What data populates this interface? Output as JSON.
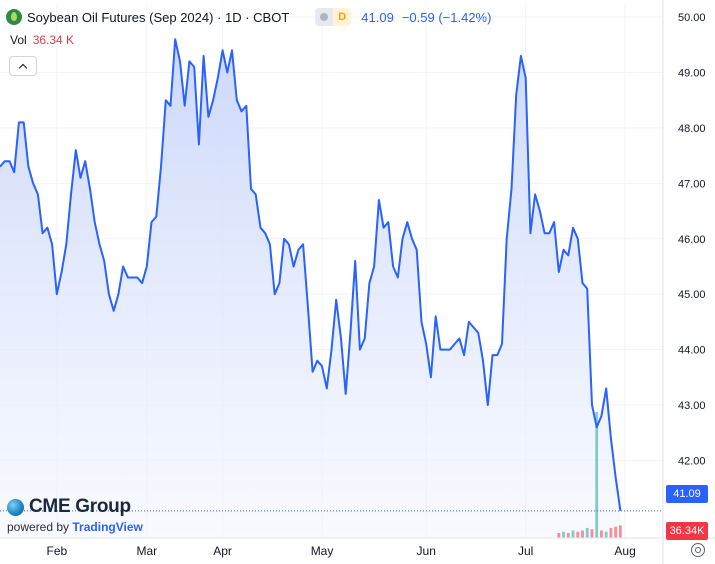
{
  "header": {
    "symbol_title": "Soybean Oil Futures (Sep 2024) · 1D · CBOT",
    "status_letter": "D",
    "last_price": "41.09",
    "change": "−0.59 (−1.42%)"
  },
  "volume_legend": {
    "label": "Vol",
    "value": "36.34 K"
  },
  "logo": {
    "brand": "CME Group",
    "powered_prefix": "powered by",
    "powered_brand": "TradingView"
  },
  "badges": {
    "price": "41.09",
    "volume": "36.34K"
  },
  "colors": {
    "line": "#2962ff",
    "area_top": "#c9d6fb",
    "area_bottom": "#f3f6fe",
    "last_price": "#2962ff",
    "volume_up": "#26a69a",
    "volume_down": "#f23645"
  },
  "chart_data": {
    "type": "area",
    "title": "Soybean Oil Futures (Sep 2024)",
    "interval": "1D",
    "exchange": "CBOT",
    "ylim": [
      40.6,
      50.2
    ],
    "y_ticks": [
      "50.00",
      "49.00",
      "48.00",
      "47.00",
      "46.00",
      "45.00",
      "44.00",
      "43.00",
      "42.00"
    ],
    "x_ticks": [
      "Feb",
      "Mar",
      "Apr",
      "May",
      "Jun",
      "Jul",
      "Aug"
    ],
    "x_tick_positions": [
      12,
      31,
      47,
      68,
      90,
      111,
      132
    ],
    "x_range": [
      0,
      140
    ],
    "grid": "horizontal-and-vertical",
    "series": [
      {
        "values": [
          [
            0,
            47.3
          ],
          [
            1,
            47.4
          ],
          [
            2,
            47.4
          ],
          [
            3,
            47.2
          ],
          [
            4,
            48.1
          ],
          [
            5,
            48.1
          ],
          [
            6,
            47.3
          ],
          [
            7,
            47.0
          ],
          [
            8,
            46.8
          ],
          [
            9,
            46.1
          ],
          [
            10,
            46.2
          ],
          [
            11,
            45.9
          ],
          [
            12,
            45.0
          ],
          [
            13,
            45.4
          ],
          [
            14,
            45.9
          ],
          [
            15,
            46.8
          ],
          [
            16,
            47.6
          ],
          [
            17,
            47.1
          ],
          [
            18,
            47.4
          ],
          [
            19,
            46.9
          ],
          [
            20,
            46.3
          ],
          [
            21,
            45.9
          ],
          [
            22,
            45.6
          ],
          [
            23,
            45.0
          ],
          [
            24,
            44.7
          ],
          [
            25,
            45.0
          ],
          [
            26,
            45.5
          ],
          [
            27,
            45.3
          ],
          [
            28,
            45.3
          ],
          [
            29,
            45.3
          ],
          [
            30,
            45.2
          ],
          [
            31,
            45.5
          ],
          [
            32,
            46.3
          ],
          [
            33,
            46.4
          ],
          [
            34,
            47.3
          ],
          [
            35,
            48.5
          ],
          [
            36,
            48.4
          ],
          [
            37,
            49.6
          ],
          [
            38,
            49.2
          ],
          [
            39,
            48.4
          ],
          [
            40,
            49.2
          ],
          [
            41,
            49.1
          ],
          [
            42,
            47.7
          ],
          [
            43,
            49.3
          ],
          [
            44,
            48.2
          ],
          [
            45,
            48.5
          ],
          [
            46,
            48.9
          ],
          [
            47,
            49.4
          ],
          [
            48,
            49.0
          ],
          [
            49,
            49.4
          ],
          [
            50,
            48.5
          ],
          [
            51,
            48.3
          ],
          [
            52,
            48.4
          ],
          [
            53,
            46.9
          ],
          [
            54,
            46.8
          ],
          [
            55,
            46.2
          ],
          [
            56,
            46.1
          ],
          [
            57,
            45.9
          ],
          [
            58,
            45.0
          ],
          [
            59,
            45.2
          ],
          [
            60,
            46.0
          ],
          [
            61,
            45.9
          ],
          [
            62,
            45.5
          ],
          [
            63,
            45.8
          ],
          [
            64,
            45.9
          ],
          [
            65,
            44.8
          ],
          [
            66,
            43.6
          ],
          [
            67,
            43.8
          ],
          [
            68,
            43.7
          ],
          [
            69,
            43.3
          ],
          [
            70,
            44.0
          ],
          [
            71,
            44.9
          ],
          [
            72,
            44.2
          ],
          [
            73,
            43.2
          ],
          [
            74,
            44.3
          ],
          [
            75,
            45.6
          ],
          [
            76,
            44.0
          ],
          [
            77,
            44.2
          ],
          [
            78,
            45.2
          ],
          [
            79,
            45.5
          ],
          [
            80,
            46.7
          ],
          [
            81,
            46.2
          ],
          [
            82,
            46.3
          ],
          [
            83,
            45.5
          ],
          [
            84,
            45.3
          ],
          [
            85,
            46.0
          ],
          [
            86,
            46.3
          ],
          [
            87,
            46.0
          ],
          [
            88,
            45.8
          ],
          [
            89,
            44.5
          ],
          [
            90,
            44.1
          ],
          [
            91,
            43.5
          ],
          [
            92,
            44.6
          ],
          [
            93,
            44.0
          ],
          [
            94,
            44.0
          ],
          [
            95,
            44.0
          ],
          [
            96,
            44.1
          ],
          [
            97,
            44.2
          ],
          [
            98,
            43.9
          ],
          [
            99,
            44.5
          ],
          [
            100,
            44.4
          ],
          [
            101,
            44.3
          ],
          [
            102,
            43.8
          ],
          [
            103,
            43.0
          ],
          [
            104,
            43.9
          ],
          [
            105,
            43.9
          ],
          [
            106,
            44.1
          ],
          [
            107,
            46.0
          ],
          [
            108,
            46.9
          ],
          [
            109,
            48.6
          ],
          [
            110,
            49.3
          ],
          [
            111,
            48.9
          ],
          [
            112,
            46.1
          ],
          [
            113,
            46.8
          ],
          [
            114,
            46.5
          ],
          [
            115,
            46.1
          ],
          [
            116,
            46.1
          ],
          [
            117,
            46.3
          ],
          [
            118,
            45.4
          ],
          [
            119,
            45.8
          ],
          [
            120,
            45.7
          ],
          [
            121,
            46.2
          ],
          [
            122,
            46.0
          ],
          [
            123,
            45.2
          ],
          [
            124,
            45.1
          ],
          [
            125,
            43.0
          ],
          [
            126,
            42.6
          ],
          [
            127,
            42.8
          ],
          [
            128,
            43.3
          ],
          [
            129,
            42.4
          ],
          [
            130,
            41.7
          ],
          [
            131,
            41.09
          ]
        ]
      }
    ],
    "volume": {
      "label": "Vol",
      "last": "36.34 K",
      "bars": [
        [
          118,
          0.04,
          "down"
        ],
        [
          119,
          0.05,
          "up"
        ],
        [
          120,
          0.04,
          "down"
        ],
        [
          121,
          0.06,
          "up"
        ],
        [
          122,
          0.05,
          "down"
        ],
        [
          123,
          0.06,
          "down"
        ],
        [
          124,
          0.08,
          "up"
        ],
        [
          125,
          0.07,
          "down"
        ],
        [
          126,
          1.0,
          "up"
        ],
        [
          127,
          0.06,
          "down"
        ],
        [
          128,
          0.05,
          "up"
        ],
        [
          129,
          0.08,
          "down"
        ],
        [
          130,
          0.09,
          "down"
        ],
        [
          131,
          0.1,
          "down"
        ]
      ]
    }
  }
}
